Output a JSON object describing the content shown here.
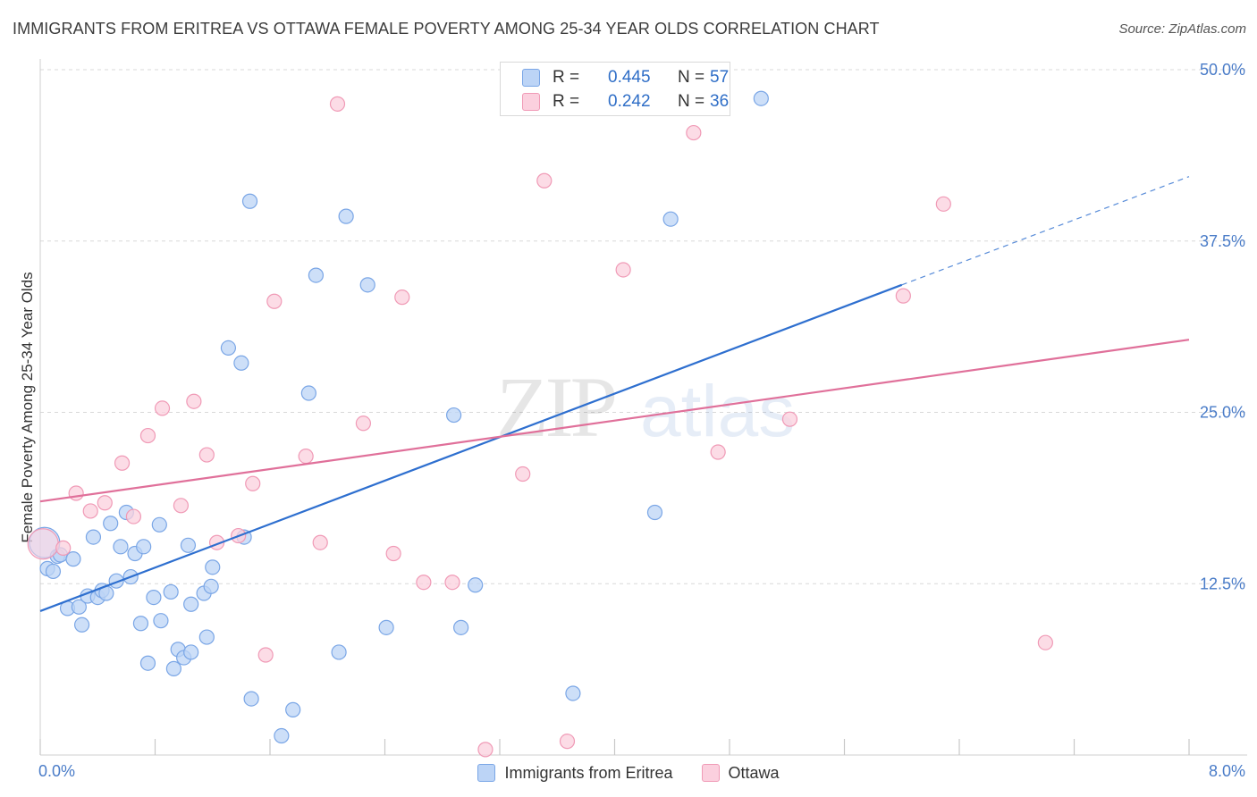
{
  "title": "IMMIGRANTS FROM ERITREA VS OTTAWA FEMALE POVERTY AMONG 25-34 YEAR OLDS CORRELATION CHART",
  "source": "Source: ZipAtlas.com",
  "watermark": {
    "zip": "ZIP",
    "atlas": "atlas"
  },
  "colors": {
    "blue_fill": "#bcd4f6",
    "blue_stroke": "#7aa6e6",
    "blue_line": "#2e6fcf",
    "pink_fill": "#fbd0de",
    "pink_stroke": "#f09ab6",
    "pink_line": "#e0709a",
    "tick_label": "#4a7cc8",
    "grid": "#d8d8d8"
  },
  "stats": [
    {
      "r_label": "R =",
      "r": "0.445",
      "n_label": "N =",
      "n": "57"
    },
    {
      "r_label": "R =",
      "r": "0.242",
      "n_label": "N =",
      "n": "36"
    }
  ],
  "legend": [
    "Immigrants from Eritrea",
    "Ottawa"
  ],
  "chart_data": {
    "type": "scatter",
    "title": "IMMIGRANTS FROM ERITREA VS OTTAWA FEMALE POVERTY AMONG 25-34 YEAR OLDS CORRELATION CHART",
    "xlabel": "",
    "ylabel": "Female Poverty Among 25-34 Year Olds",
    "xlim": [
      0,
      8
    ],
    "ylim": [
      0,
      50
    ],
    "x_tick_labels": [
      "0.0%",
      "8.0%"
    ],
    "y_ticks": [
      12.5,
      25.0,
      37.5,
      50.0
    ],
    "y_tick_labels": [
      "12.5%",
      "25.0%",
      "37.5%",
      "50.0%"
    ],
    "grid": "horizontal dashed",
    "legend_position": "bottom",
    "series": [
      {
        "name": "Immigrants from Eritrea",
        "r": 0.445,
        "n": 57,
        "trend": {
          "x0": 0.0,
          "y0": 10.5,
          "x1": 6.0,
          "y1": 34.3,
          "dashed_to_x": 8.0,
          "dashed_to_y": 42.2
        },
        "points": [
          [
            0.05,
            13.6
          ],
          [
            0.09,
            13.4
          ],
          [
            0.12,
            14.5
          ],
          [
            0.14,
            14.6
          ],
          [
            0.19,
            10.7
          ],
          [
            0.23,
            14.3
          ],
          [
            0.27,
            10.8
          ],
          [
            0.29,
            9.5
          ],
          [
            0.33,
            11.6
          ],
          [
            0.37,
            15.9
          ],
          [
            0.4,
            11.5
          ],
          [
            0.43,
            12.0
          ],
          [
            0.46,
            11.8
          ],
          [
            0.49,
            16.9
          ],
          [
            0.53,
            12.7
          ],
          [
            0.56,
            15.2
          ],
          [
            0.6,
            17.7
          ],
          [
            0.63,
            13.0
          ],
          [
            0.66,
            14.7
          ],
          [
            0.7,
            9.6
          ],
          [
            0.72,
            15.2
          ],
          [
            0.75,
            6.7
          ],
          [
            0.79,
            11.5
          ],
          [
            0.84,
            9.8
          ],
          [
            0.83,
            16.8
          ],
          [
            0.91,
            11.9
          ],
          [
            0.96,
            7.7
          ],
          [
            0.93,
            6.3
          ],
          [
            1.0,
            7.1
          ],
          [
            1.05,
            7.5
          ],
          [
            1.03,
            15.3
          ],
          [
            1.05,
            11.0
          ],
          [
            1.14,
            11.8
          ],
          [
            1.19,
            12.3
          ],
          [
            1.2,
            13.7
          ],
          [
            1.16,
            8.6
          ],
          [
            1.31,
            29.7
          ],
          [
            1.4,
            28.6
          ],
          [
            1.42,
            15.9
          ],
          [
            1.47,
            4.1
          ],
          [
            1.46,
            40.4
          ],
          [
            1.68,
            1.4
          ],
          [
            1.76,
            3.3
          ],
          [
            1.87,
            26.4
          ],
          [
            1.92,
            35.0
          ],
          [
            2.08,
            7.5
          ],
          [
            2.13,
            39.3
          ],
          [
            2.28,
            34.3
          ],
          [
            2.41,
            9.3
          ],
          [
            2.93,
            9.3
          ],
          [
            2.88,
            24.8
          ],
          [
            3.03,
            12.4
          ],
          [
            3.71,
            4.5
          ],
          [
            4.28,
            17.7
          ],
          [
            4.39,
            39.1
          ],
          [
            5.02,
            47.9
          ],
          [
            0.03,
            15.5
          ]
        ]
      },
      {
        "name": "Ottawa",
        "r": 0.242,
        "n": 36,
        "trend": {
          "x0": 0.0,
          "y0": 18.5,
          "x1": 8.0,
          "y1": 30.3
        },
        "points": [
          [
            0.02,
            15.4
          ],
          [
            0.16,
            15.1
          ],
          [
            0.25,
            19.1
          ],
          [
            0.35,
            17.8
          ],
          [
            0.45,
            18.4
          ],
          [
            0.57,
            21.3
          ],
          [
            0.65,
            17.4
          ],
          [
            0.75,
            23.3
          ],
          [
            0.85,
            25.3
          ],
          [
            0.98,
            18.2
          ],
          [
            1.07,
            25.8
          ],
          [
            1.16,
            21.9
          ],
          [
            1.23,
            15.5
          ],
          [
            1.38,
            16.0
          ],
          [
            1.48,
            19.8
          ],
          [
            1.57,
            7.3
          ],
          [
            1.63,
            33.1
          ],
          [
            1.85,
            21.8
          ],
          [
            1.95,
            15.5
          ],
          [
            2.07,
            47.5
          ],
          [
            2.25,
            24.2
          ],
          [
            2.46,
            14.7
          ],
          [
            2.52,
            33.4
          ],
          [
            2.67,
            12.6
          ],
          [
            2.87,
            12.6
          ],
          [
            3.1,
            0.4
          ],
          [
            3.36,
            20.5
          ],
          [
            3.51,
            41.9
          ],
          [
            3.67,
            1.0
          ],
          [
            4.06,
            35.4
          ],
          [
            4.55,
            45.4
          ],
          [
            4.72,
            22.1
          ],
          [
            5.22,
            24.5
          ],
          [
            6.01,
            33.5
          ],
          [
            6.29,
            40.2
          ],
          [
            7.0,
            8.2
          ]
        ]
      }
    ]
  }
}
